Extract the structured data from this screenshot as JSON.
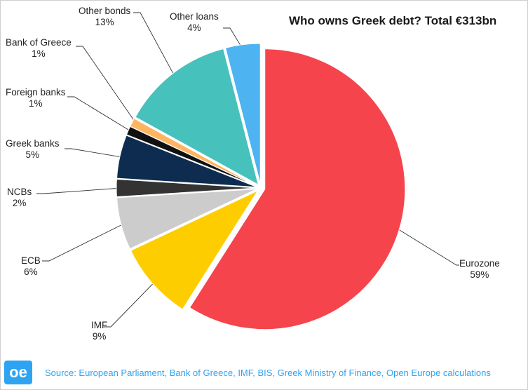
{
  "chart_data": {
    "type": "pie",
    "title": "Who owns Greek debt? Total €313bn",
    "total_label": "Total €313bn",
    "slices": [
      {
        "label": "Eurozone",
        "value": 59,
        "display": "59%",
        "color": "#f5444b"
      },
      {
        "label": "IMF",
        "value": 9,
        "display": "9%",
        "color": "#fecd00"
      },
      {
        "label": "ECB",
        "value": 6,
        "display": "6%",
        "color": "#cccccc"
      },
      {
        "label": "NCBs",
        "value": 2,
        "display": "2%",
        "color": "#333333"
      },
      {
        "label": "Greek banks",
        "value": 5,
        "display": "5%",
        "color": "#0d2c50"
      },
      {
        "label": "Foreign banks",
        "value": 1,
        "display": "1%",
        "color": "#111111"
      },
      {
        "label": "Bank of Greece",
        "value": 1,
        "display": "1%",
        "color": "#feb562"
      },
      {
        "label": "Other bonds",
        "value": 13,
        "display": "13%",
        "color": "#47c1bc"
      },
      {
        "label": "Other loans",
        "value": 4,
        "display": "4%",
        "color": "#4db3f1"
      }
    ],
    "start_angle_deg": 0,
    "direction": "clockwise",
    "exploded": true
  },
  "footer": {
    "logo_text": "oe",
    "logo_color": "#2ea3f2",
    "source": "Source: European Parliament, Bank of Greece, IMF, BIS, Greek Ministry of Finance, Open Europe calculations",
    "source_color": "#2ea3f2"
  }
}
